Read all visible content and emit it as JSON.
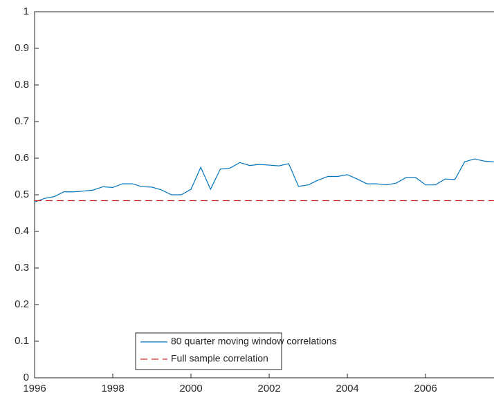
{
  "chart_data": {
    "type": "line",
    "x": [
      1996,
      1996.25,
      1996.5,
      1996.75,
      1997,
      1997.25,
      1997.5,
      1997.75,
      1998,
      1998.25,
      1998.5,
      1998.75,
      1999,
      1999.25,
      1999.5,
      1999.75,
      2000,
      2000.25,
      2000.5,
      2000.75,
      2001,
      2001.25,
      2001.5,
      2001.75,
      2002,
      2002.25,
      2002.5,
      2002.75,
      2003,
      2003.25,
      2003.5,
      2003.75,
      2004,
      2004.25,
      2004.5,
      2004.75,
      2005,
      2005.25,
      2005.5,
      2005.75,
      2006,
      2006.25,
      2006.5,
      2006.75,
      2007,
      2007.25,
      2007.5,
      2007.75
    ],
    "series": [
      {
        "name": "80 quarter moving window correlations",
        "color": "#0072bd",
        "values": [
          0.48,
          0.49,
          0.495,
          0.508,
          0.508,
          0.51,
          0.513,
          0.522,
          0.52,
          0.53,
          0.53,
          0.522,
          0.521,
          0.513,
          0.5,
          0.5,
          0.515,
          0.575,
          0.515,
          0.57,
          0.573,
          0.588,
          0.58,
          0.583,
          0.581,
          0.579,
          0.585,
          0.523,
          0.527,
          0.54,
          0.55,
          0.55,
          0.555,
          0.543,
          0.53,
          0.53,
          0.527,
          0.532,
          0.547,
          0.547,
          0.527,
          0.527,
          0.543,
          0.542,
          0.59,
          0.598,
          0.592,
          0.59
        ]
      },
      {
        "name": "Full sample correlation",
        "color": "#d62728",
        "style": "dashed",
        "value": 0.484
      }
    ],
    "xlim": [
      1996,
      2007.75
    ],
    "xticks": [
      1996,
      1998,
      2000,
      2002,
      2004,
      2006
    ],
    "ylim": [
      0,
      1
    ],
    "yticks": [
      0,
      0.1,
      0.2,
      0.3,
      0.4,
      0.5,
      0.6,
      0.7,
      0.8,
      0.9,
      1
    ],
    "grid": false,
    "legend": "bottom"
  }
}
